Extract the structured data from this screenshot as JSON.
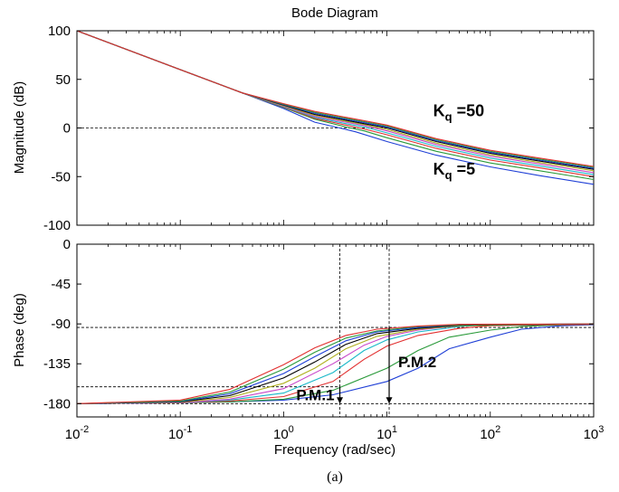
{
  "chart_data": [
    {
      "type": "line",
      "title": "Bode Diagram",
      "ylabel": "Magnitude (dB)",
      "xlabel": "",
      "x_scale": "log",
      "xlim": [
        0.01,
        1000
      ],
      "ylim": [
        -100,
        100
      ],
      "yticks": [
        100,
        50,
        0,
        -50,
        -100
      ],
      "grid": false,
      "reference_lines": [
        {
          "axis": "y",
          "value": 0,
          "x_end": 10.5
        }
      ],
      "annotations": [
        {
          "text_main": "K",
          "text_sub": "q",
          "text_tail": " =50",
          "x": 28,
          "y": 12
        },
        {
          "text_main": "K",
          "text_sub": "q",
          "text_tail": " =5",
          "x": 28,
          "y": -48
        }
      ],
      "series": [
        {
          "color": "#1f3fd6",
          "values": [
            [
              0.01,
              100
            ],
            [
              0.1,
              60
            ],
            [
              0.4,
              36
            ],
            [
              1,
              20
            ],
            [
              2,
              6
            ],
            [
              3.5,
              0
            ],
            [
              5,
              -4
            ],
            [
              10,
              -14
            ],
            [
              30,
              -28
            ],
            [
              100,
              -40
            ],
            [
              300,
              -49
            ],
            [
              1000,
              -58
            ]
          ]
        },
        {
          "color": "#2a9a3a",
          "values": [
            [
              0.01,
              100
            ],
            [
              0.1,
              60
            ],
            [
              0.4,
              36
            ],
            [
              1,
              21
            ],
            [
              2,
              9
            ],
            [
              4,
              1
            ],
            [
              6,
              -3
            ],
            [
              10,
              -10
            ],
            [
              30,
              -24
            ],
            [
              100,
              -36
            ],
            [
              300,
              -44
            ],
            [
              1000,
              -53
            ]
          ]
        },
        {
          "color": "#e23030",
          "values": [
            [
              0.01,
              100
            ],
            [
              0.1,
              60
            ],
            [
              0.4,
              36
            ],
            [
              1,
              21.5
            ],
            [
              2,
              10
            ],
            [
              4,
              3
            ],
            [
              6,
              -1
            ],
            [
              10,
              -7
            ],
            [
              30,
              -21
            ],
            [
              100,
              -33
            ],
            [
              300,
              -41
            ],
            [
              1000,
              -50
            ]
          ]
        },
        {
          "color": "#18b8c8",
          "values": [
            [
              0.01,
              100
            ],
            [
              0.1,
              60
            ],
            [
              0.4,
              36
            ],
            [
              1,
              22
            ],
            [
              2,
              11
            ],
            [
              4,
              4.5
            ],
            [
              6,
              1
            ],
            [
              10,
              -5
            ],
            [
              30,
              -19
            ],
            [
              100,
              -31
            ],
            [
              300,
              -39
            ],
            [
              1000,
              -48
            ]
          ]
        },
        {
          "color": "#c845c8",
          "values": [
            [
              0.01,
              100
            ],
            [
              0.1,
              60
            ],
            [
              0.4,
              36
            ],
            [
              1,
              22.5
            ],
            [
              2,
              12
            ],
            [
              4,
              6
            ],
            [
              6,
              2.5
            ],
            [
              10,
              -3
            ],
            [
              30,
              -17
            ],
            [
              100,
              -29
            ],
            [
              300,
              -37
            ],
            [
              1000,
              -46
            ]
          ]
        },
        {
          "color": "#b0b020",
          "values": [
            [
              0.01,
              100
            ],
            [
              0.1,
              60
            ],
            [
              0.4,
              36
            ],
            [
              1,
              23
            ],
            [
              2,
              13
            ],
            [
              4,
              7
            ],
            [
              6,
              3.5
            ],
            [
              10,
              -1.5
            ],
            [
              30,
              -15.5
            ],
            [
              100,
              -27.5
            ],
            [
              300,
              -35.5
            ],
            [
              1000,
              -44
            ]
          ]
        },
        {
          "color": "#000000",
          "values": [
            [
              0.01,
              100
            ],
            [
              0.1,
              60
            ],
            [
              0.4,
              36
            ],
            [
              1,
              23.5
            ],
            [
              2,
              14
            ],
            [
              4,
              8
            ],
            [
              6,
              4.5
            ],
            [
              10,
              0
            ],
            [
              30,
              -14
            ],
            [
              100,
              -26
            ],
            [
              300,
              -34
            ],
            [
              1000,
              -42.5
            ]
          ]
        },
        {
          "color": "#1f3fd6",
          "values": [
            [
              0.01,
              100
            ],
            [
              0.1,
              60
            ],
            [
              0.4,
              36
            ],
            [
              1,
              24
            ],
            [
              2,
              15
            ],
            [
              4,
              9
            ],
            [
              6,
              5.5
            ],
            [
              10,
              1
            ],
            [
              30,
              -13
            ],
            [
              100,
              -25
            ],
            [
              300,
              -33
            ],
            [
              1000,
              -41.5
            ]
          ]
        },
        {
          "color": "#2a9a3a",
          "values": [
            [
              0.01,
              100
            ],
            [
              0.1,
              60
            ],
            [
              0.4,
              36
            ],
            [
              1,
              24.5
            ],
            [
              2,
              16
            ],
            [
              4,
              10
            ],
            [
              6,
              6.5
            ],
            [
              10,
              2
            ],
            [
              30,
              -12
            ],
            [
              100,
              -24
            ],
            [
              300,
              -32
            ],
            [
              1000,
              -40.5
            ]
          ]
        },
        {
          "color": "#e23030",
          "values": [
            [
              0.01,
              100
            ],
            [
              0.1,
              60
            ],
            [
              0.4,
              36
            ],
            [
              1,
              25
            ],
            [
              2,
              17
            ],
            [
              4,
              11
            ],
            [
              6,
              7.5
            ],
            [
              10,
              3
            ],
            [
              30,
              -11
            ],
            [
              100,
              -23
            ],
            [
              300,
              -31
            ],
            [
              1000,
              -39.5
            ]
          ]
        }
      ]
    },
    {
      "type": "line",
      "title": "",
      "ylabel": "Phase (deg)",
      "xlabel": "Frequency (rad/sec)",
      "x_scale": "log",
      "xlim": [
        0.01,
        1000
      ],
      "ylim": [
        -195,
        0
      ],
      "yticks": [
        0,
        -45,
        -90,
        -135,
        -180
      ],
      "xticks": [
        0.01,
        0.1,
        1,
        10,
        100,
        1000
      ],
      "xtick_labels": [
        {
          "base": "10",
          "exp": "-2"
        },
        {
          "base": "10",
          "exp": "-1"
        },
        {
          "base": "10",
          "exp": "0"
        },
        {
          "base": "10",
          "exp": "1"
        },
        {
          "base": "10",
          "exp": "2"
        },
        {
          "base": "10",
          "exp": "3"
        }
      ],
      "grid": false,
      "reference_lines": [
        {
          "axis": "y",
          "value": -94
        },
        {
          "axis": "y",
          "value": -161,
          "x_end": 3.5
        },
        {
          "axis": "y",
          "value": -180
        },
        {
          "axis": "x",
          "value": 3.5
        },
        {
          "axis": "x",
          "value": 10.5
        }
      ],
      "annotations": [
        {
          "text": "P.M.1",
          "x": 3.5,
          "arrow_from": -161,
          "arrow_to": -180
        },
        {
          "text": "P.M.2",
          "x": 10.5,
          "arrow_from": -94,
          "arrow_to": -180
        }
      ],
      "series": [
        {
          "color": "#1f3fd6",
          "values": [
            [
              0.01,
              -180
            ],
            [
              0.1,
              -179
            ],
            [
              0.3,
              -178
            ],
            [
              1,
              -176
            ],
            [
              3,
              -170
            ],
            [
              10,
              -155
            ],
            [
              20,
              -140
            ],
            [
              40,
              -118
            ],
            [
              100,
              -105
            ],
            [
              200,
              -96
            ],
            [
              500,
              -92
            ],
            [
              1000,
              -91
            ]
          ]
        },
        {
          "color": "#2a9a3a",
          "values": [
            [
              0.01,
              -180
            ],
            [
              0.1,
              -179
            ],
            [
              0.3,
              -178
            ],
            [
              1,
              -175
            ],
            [
              3,
              -165
            ],
            [
              10,
              -140
            ],
            [
              20,
              -120
            ],
            [
              40,
              -105
            ],
            [
              100,
              -97
            ],
            [
              200,
              -93
            ],
            [
              500,
              -91
            ],
            [
              1000,
              -90.5
            ]
          ]
        },
        {
          "color": "#e23030",
          "values": [
            [
              0.01,
              -180
            ],
            [
              0.1,
              -179
            ],
            [
              0.3,
              -177
            ],
            [
              1,
              -172
            ],
            [
              3,
              -155
            ],
            [
              6,
              -130
            ],
            [
              10,
              -115
            ],
            [
              20,
              -103
            ],
            [
              50,
              -95
            ],
            [
              100,
              -92
            ],
            [
              1000,
              -90.5
            ]
          ]
        },
        {
          "color": "#18b8c8",
          "values": [
            [
              0.01,
              -180
            ],
            [
              0.1,
              -179
            ],
            [
              0.3,
              -176
            ],
            [
              1,
              -168
            ],
            [
              3,
              -145
            ],
            [
              6,
              -120
            ],
            [
              10,
              -108
            ],
            [
              20,
              -99
            ],
            [
              50,
              -93
            ],
            [
              100,
              -91
            ],
            [
              1000,
              -90
            ]
          ]
        },
        {
          "color": "#c845c8",
          "values": [
            [
              0.01,
              -180
            ],
            [
              0.1,
              -179
            ],
            [
              0.3,
              -175
            ],
            [
              1,
              -163
            ],
            [
              3,
              -135
            ],
            [
              6,
              -114
            ],
            [
              10,
              -104
            ],
            [
              20,
              -97
            ],
            [
              50,
              -92
            ],
            [
              100,
              -91
            ],
            [
              1000,
              -90
            ]
          ]
        },
        {
          "color": "#b0b020",
          "values": [
            [
              0.01,
              -180
            ],
            [
              0.1,
              -178.5
            ],
            [
              0.3,
              -173
            ],
            [
              1,
              -157
            ],
            [
              2,
              -140
            ],
            [
              4,
              -118
            ],
            [
              8,
              -104
            ],
            [
              20,
              -96
            ],
            [
              50,
              -92
            ],
            [
              1000,
              -90
            ]
          ]
        },
        {
          "color": "#000000",
          "values": [
            [
              0.01,
              -180
            ],
            [
              0.1,
              -178
            ],
            [
              0.3,
              -171
            ],
            [
              1,
              -151
            ],
            [
              2,
              -133
            ],
            [
              4,
              -113
            ],
            [
              8,
              -101
            ],
            [
              20,
              -95
            ],
            [
              50,
              -91.5
            ],
            [
              1000,
              -90
            ]
          ]
        },
        {
          "color": "#1f3fd6",
          "values": [
            [
              0.01,
              -180
            ],
            [
              0.1,
              -177.5
            ],
            [
              0.3,
              -169
            ],
            [
              1,
              -146
            ],
            [
              2,
              -127
            ],
            [
              4,
              -109
            ],
            [
              8,
              -99
            ],
            [
              20,
              -94
            ],
            [
              50,
              -91
            ],
            [
              1000,
              -90
            ]
          ]
        },
        {
          "color": "#2a9a3a",
          "values": [
            [
              0.01,
              -180
            ],
            [
              0.1,
              -177
            ],
            [
              0.3,
              -167
            ],
            [
              1,
              -141
            ],
            [
              2,
              -122
            ],
            [
              4,
              -106
            ],
            [
              8,
              -98
            ],
            [
              20,
              -93
            ],
            [
              50,
              -91
            ],
            [
              1000,
              -90
            ]
          ]
        },
        {
          "color": "#e23030",
          "values": [
            [
              0.01,
              -180
            ],
            [
              0.1,
              -176
            ],
            [
              0.3,
              -164
            ],
            [
              1,
              -136
            ],
            [
              2,
              -117
            ],
            [
              4,
              -103
            ],
            [
              8,
              -96
            ],
            [
              20,
              -92.5
            ],
            [
              50,
              -90.5
            ],
            [
              1000,
              -90
            ]
          ]
        }
      ]
    }
  ],
  "caption": "(a)"
}
